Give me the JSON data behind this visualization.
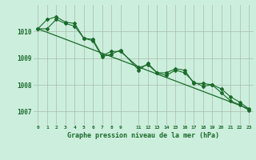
{
  "background_color": "#cceedd",
  "grid_color": "#aabbaa",
  "line_color": "#1a6b2a",
  "marker_color": "#1a6b2a",
  "title": "Graphe pression niveau de la mer (hPa)",
  "xlim": [
    -0.5,
    23.5
  ],
  "ylim": [
    1006.5,
    1011.0
  ],
  "yticks": [
    1007,
    1008,
    1009,
    1010
  ],
  "xtick_positions": [
    0,
    1,
    2,
    3,
    4,
    5,
    6,
    7,
    8,
    9,
    11,
    12,
    13,
    14,
    15,
    16,
    17,
    18,
    19,
    20,
    21,
    22,
    23
  ],
  "xtick_labels": [
    "0",
    "1",
    "2",
    "3",
    "4",
    "5",
    "6",
    "7",
    "8",
    "9",
    "11",
    "12",
    "13",
    "14",
    "15",
    "16",
    "17",
    "18",
    "19",
    "20",
    "21",
    "22",
    "23"
  ],
  "series1": [
    [
      0,
      1010.1
    ],
    [
      1,
      1010.45
    ],
    [
      2,
      1010.55
    ],
    [
      3,
      1010.35
    ],
    [
      4,
      1010.3
    ],
    [
      5,
      1009.75
    ],
    [
      6,
      1009.7
    ],
    [
      7,
      1009.1
    ],
    [
      8,
      1009.25
    ],
    [
      9,
      1009.25
    ],
    [
      11,
      1008.65
    ],
    [
      12,
      1008.75
    ],
    [
      13,
      1008.45
    ],
    [
      14,
      1008.45
    ],
    [
      15,
      1008.6
    ],
    [
      16,
      1008.55
    ],
    [
      17,
      1008.05
    ],
    [
      18,
      1008.05
    ],
    [
      19,
      1008.0
    ],
    [
      20,
      1007.85
    ],
    [
      21,
      1007.55
    ],
    [
      22,
      1007.35
    ],
    [
      23,
      1007.1
    ]
  ],
  "series2": [
    [
      0,
      1010.1
    ],
    [
      1,
      1010.1
    ],
    [
      2,
      1010.45
    ],
    [
      3,
      1010.3
    ],
    [
      4,
      1010.2
    ],
    [
      5,
      1009.75
    ],
    [
      6,
      1009.65
    ],
    [
      7,
      1009.05
    ],
    [
      8,
      1009.15
    ],
    [
      9,
      1009.3
    ],
    [
      11,
      1008.55
    ],
    [
      12,
      1008.8
    ],
    [
      13,
      1008.45
    ],
    [
      14,
      1008.35
    ],
    [
      15,
      1008.55
    ],
    [
      16,
      1008.45
    ],
    [
      17,
      1008.1
    ],
    [
      18,
      1007.95
    ],
    [
      19,
      1008.0
    ],
    [
      20,
      1007.7
    ],
    [
      21,
      1007.4
    ],
    [
      22,
      1007.25
    ],
    [
      23,
      1007.05
    ]
  ],
  "series3_x": [
    0,
    23
  ],
  "series3_y": [
    1010.1,
    1007.1
  ]
}
